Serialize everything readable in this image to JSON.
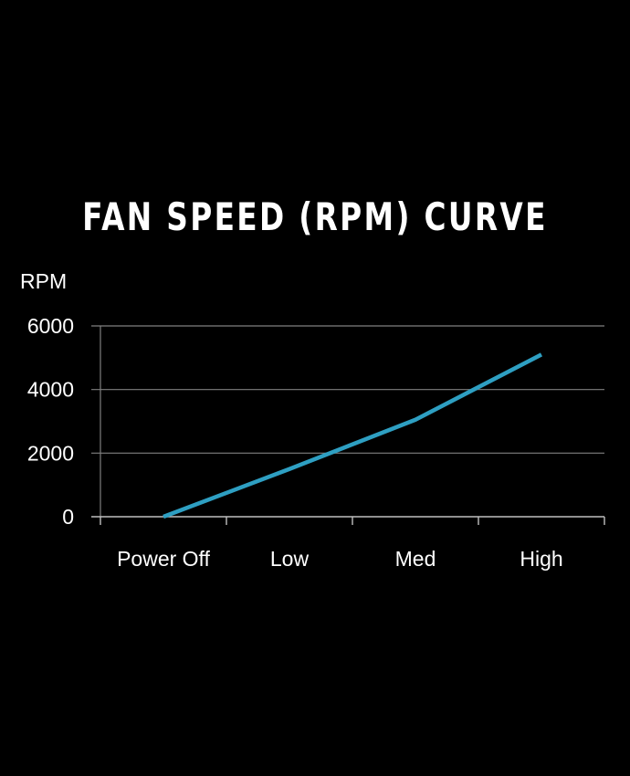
{
  "chart_data": {
    "type": "line",
    "title": "FAN  SPEED (RPM) CURVE",
    "ylabel": "RPM",
    "xlabel": "",
    "categories": [
      "Power Off",
      "Low",
      "Med",
      "High"
    ],
    "series": [
      {
        "values": [
          0,
          1500,
          3050,
          5100
        ]
      }
    ],
    "ylim": [
      0,
      6000
    ],
    "yticks": [
      "6000",
      "4000",
      "2000",
      "0"
    ],
    "grid": true,
    "legend": "none",
    "colors": {
      "background": "#000000",
      "line": "#2e9fc2",
      "grid": "#7f7f7f",
      "text": "#ffffff"
    }
  }
}
